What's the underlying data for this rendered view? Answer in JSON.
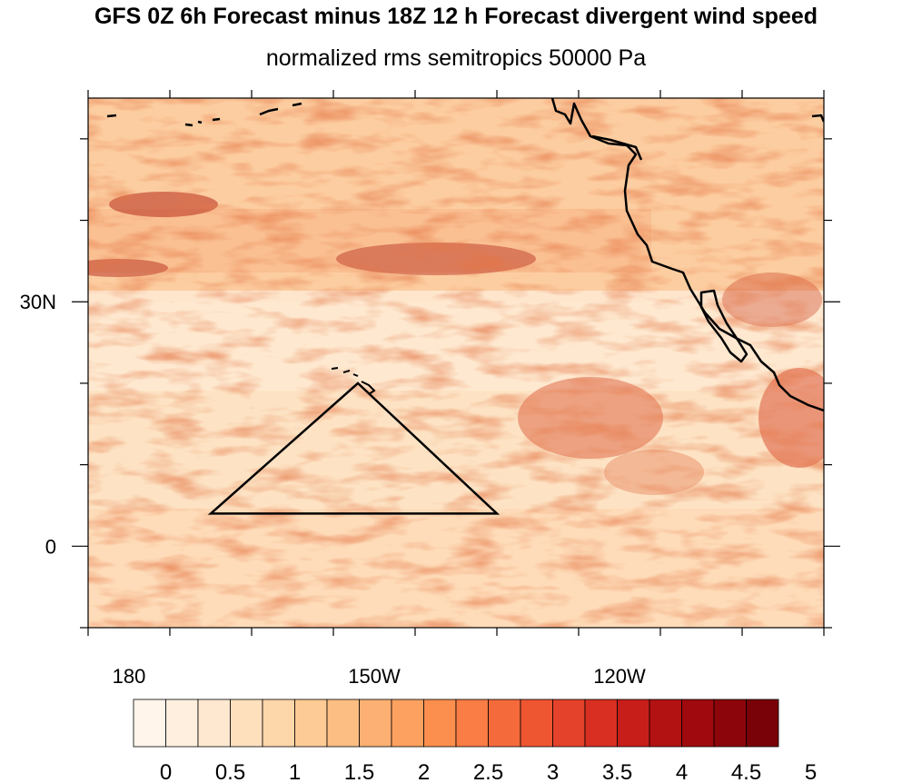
{
  "title": "GFS 0Z 6h Forecast minus 18Z 12 h Forecast divergent wind speed",
  "subtitle": "normalized rms semitropics 50000 Pa",
  "map": {
    "lon_range": [
      175,
      265
    ],
    "lat_range": [
      -10,
      55
    ],
    "x_ticks": [
      {
        "lon": 180,
        "label": "180"
      },
      {
        "lon": 210,
        "label": "150W"
      },
      {
        "lon": 240,
        "label": "120W"
      }
    ],
    "y_ticks": [
      {
        "lat": 0,
        "label": "0"
      },
      {
        "lat": 30,
        "label": "30N"
      }
    ],
    "triangle": [
      [
        190,
        4
      ],
      [
        208,
        20
      ],
      [
        225,
        4
      ]
    ]
  },
  "colorbar": {
    "labels": [
      "0",
      "0.5",
      "1",
      "1.5",
      "2",
      "2.5",
      "3",
      "3.5",
      "4",
      "4.5",
      "5"
    ],
    "colors": [
      "#fff5eb",
      "#ffefdf",
      "#fee8d0",
      "#fee0bd",
      "#fdd6a9",
      "#fdcb95",
      "#fdbe84",
      "#fdb073",
      "#fda160",
      "#fc8f4e",
      "#f97d44",
      "#f56a3b",
      "#ee5632",
      "#e4422a",
      "#d82f22",
      "#c81e1a",
      "#b31212",
      "#a00a0e",
      "#8c050b",
      "#780207"
    ]
  }
}
